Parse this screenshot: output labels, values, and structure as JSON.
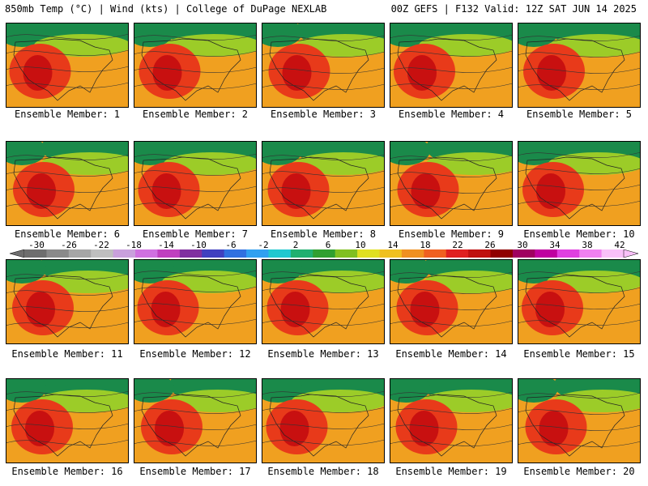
{
  "header": {
    "left": "850mb Temp (°C) | Wind (kts) | College of DuPage NEXLAB",
    "right": "00Z GEFS | F132 Valid: 12Z SAT JUN 14 2025"
  },
  "members": [
    "Ensemble Member: 1",
    "Ensemble Member: 2",
    "Ensemble Member: 3",
    "Ensemble Member: 4",
    "Ensemble Member: 5",
    "Ensemble Member: 6",
    "Ensemble Member: 7",
    "Ensemble Member: 8",
    "Ensemble Member: 9",
    "Ensemble Member: 10",
    "Ensemble Member: 11",
    "Ensemble Member: 12",
    "Ensemble Member: 13",
    "Ensemble Member: 14",
    "Ensemble Member: 15",
    "Ensemble Member: 16",
    "Ensemble Member: 17",
    "Ensemble Member: 18",
    "Ensemble Member: 19",
    "Ensemble Member: 20"
  ],
  "colorbar": {
    "labels": [
      "-30",
      "-26",
      "-22",
      "-18",
      "-14",
      "-10",
      "-6",
      "-2",
      "2",
      "6",
      "10",
      "14",
      "18",
      "22",
      "26",
      "30",
      "34",
      "38",
      "42"
    ],
    "colors": [
      "#6e6e6e",
      "#8a8a8a",
      "#a6a6a6",
      "#bfbfbf",
      "#c9a0dc",
      "#d070e0",
      "#c040c0",
      "#8030a0",
      "#4040c0",
      "#3070e0",
      "#30a0f0",
      "#20c8d0",
      "#20b070",
      "#30a030",
      "#80c020",
      "#e0e020",
      "#f0c020",
      "#f09020",
      "#f06020",
      "#e02020",
      "#c01010",
      "#900000",
      "#a00060",
      "#c000a0",
      "#e040e0",
      "#f080f0",
      "#f8c0f8"
    ]
  },
  "palette": {
    "cool": "#1a8a4a",
    "mid": "#9ccc28",
    "warm": "#f0a020",
    "hot": "#e83a1a",
    "core": "#c81010"
  }
}
